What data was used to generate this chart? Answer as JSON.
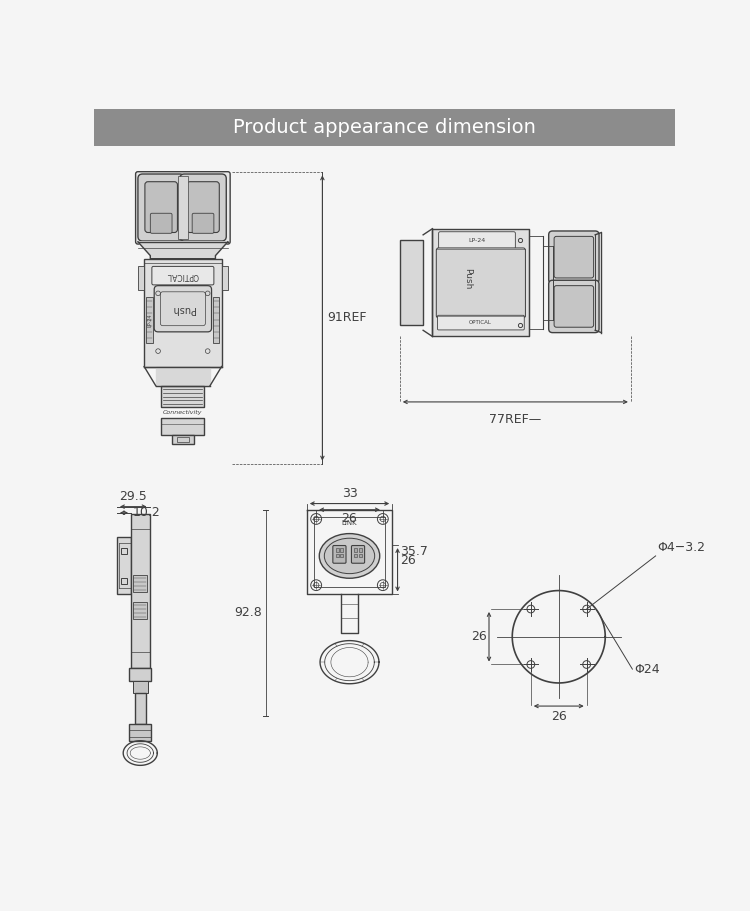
{
  "title": "Product appearance dimension",
  "title_bg": "#8c8c8c",
  "title_color": "#ffffff",
  "bg_color": "#f5f5f5",
  "line_color": "#404040",
  "dim_color": "#404040",
  "label_91REF": "91REF",
  "label_77REF": "77REF—",
  "label_29_5": "29.5",
  "label_10_2": "10.2",
  "label_33": "33",
  "label_26a": "26",
  "label_35_7": "35.7",
  "label_26b": "26",
  "label_92_8": "92.8",
  "label_phi4": "Φ4−3.2",
  "label_phi24": "Φ24",
  "label_26c": "26",
  "label_26d": "26",
  "title_fontsize": 14,
  "annot_fontsize": 9
}
